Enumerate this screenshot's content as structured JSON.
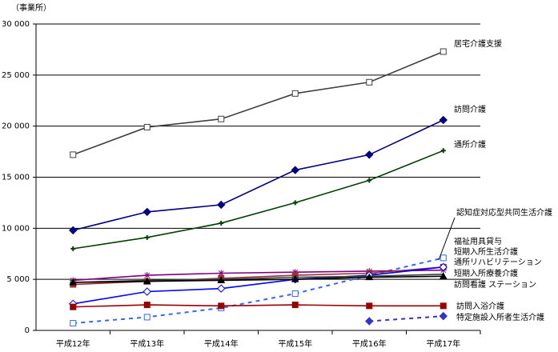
{
  "chart_data": {
    "type": "line",
    "y_label": "（事業所）",
    "categories": [
      "平成12年",
      "平成13年",
      "平成14年",
      "平成15年",
      "平成16年",
      "平成17年"
    ],
    "ylim": [
      0,
      30000
    ],
    "yticks": [
      0,
      {
        "value": 5000,
        "label": "5 000"
      },
      {
        "value": 10000,
        "label": "10 000"
      },
      {
        "value": 15000,
        "label": "15 000"
      },
      {
        "value": 20000,
        "label": "20 000"
      },
      {
        "value": 25000,
        "label": "25 000"
      },
      {
        "value": 30000,
        "label": "30 000"
      }
    ],
    "grid": true,
    "series": [
      {
        "name": "居宅介護支援",
        "color": "#404040",
        "marker": "square-open",
        "values": [
          17200,
          19900,
          20700,
          23200,
          24300,
          27300
        ]
      },
      {
        "name": "訪問介護",
        "color": "#000080",
        "marker": "diamond",
        "values": [
          9800,
          11600,
          12300,
          15700,
          17200,
          20600
        ]
      },
      {
        "name": "通所介護",
        "color": "#004000",
        "marker": "plus",
        "values": [
          8000,
          9100,
          10500,
          12500,
          14700,
          17600
        ]
      },
      {
        "name": "認知症対応型共同生活介護",
        "color": "#3366ff",
        "marker": "square-open",
        "dashed": true,
        "values": [
          700,
          1300,
          2200,
          3600,
          5400,
          7100
        ]
      },
      {
        "name": "福祉用具貸与",
        "color": "#800080",
        "marker": "star",
        "values": [
          4900,
          5400,
          5600,
          5700,
          5800,
          5900
        ]
      },
      {
        "name": "短期入所生活介護",
        "color": "#993333",
        "marker": "square",
        "values": [
          4500,
          4800,
          5100,
          5400,
          5600,
          6200
        ]
      },
      {
        "name": "通所リハビリテーション",
        "color": "#0000ff",
        "marker": "diamond-open",
        "values": [
          2600,
          3800,
          4100,
          5000,
          5400,
          6200
        ]
      },
      {
        "name": "短期入所療養介護",
        "color": "#404040",
        "marker": "none",
        "values": [
          4700,
          4900,
          5000,
          5200,
          5300,
          5500
        ]
      },
      {
        "name": "訪問看護 ステーション",
        "color": "#000000",
        "marker": "triangle",
        "values": [
          4700,
          4800,
          4900,
          5000,
          5200,
          5300
        ]
      },
      {
        "name": "訪問入浴介護",
        "color": "#990000",
        "marker": "square",
        "values": [
          2300,
          2500,
          2400,
          2500,
          2400,
          2400
        ]
      },
      {
        "name": "特定施設入所者生活介護",
        "color": "#3333cc",
        "marker": "diamond",
        "dashed": true,
        "values": [
          null,
          null,
          null,
          null,
          900,
          1400
        ]
      }
    ]
  }
}
